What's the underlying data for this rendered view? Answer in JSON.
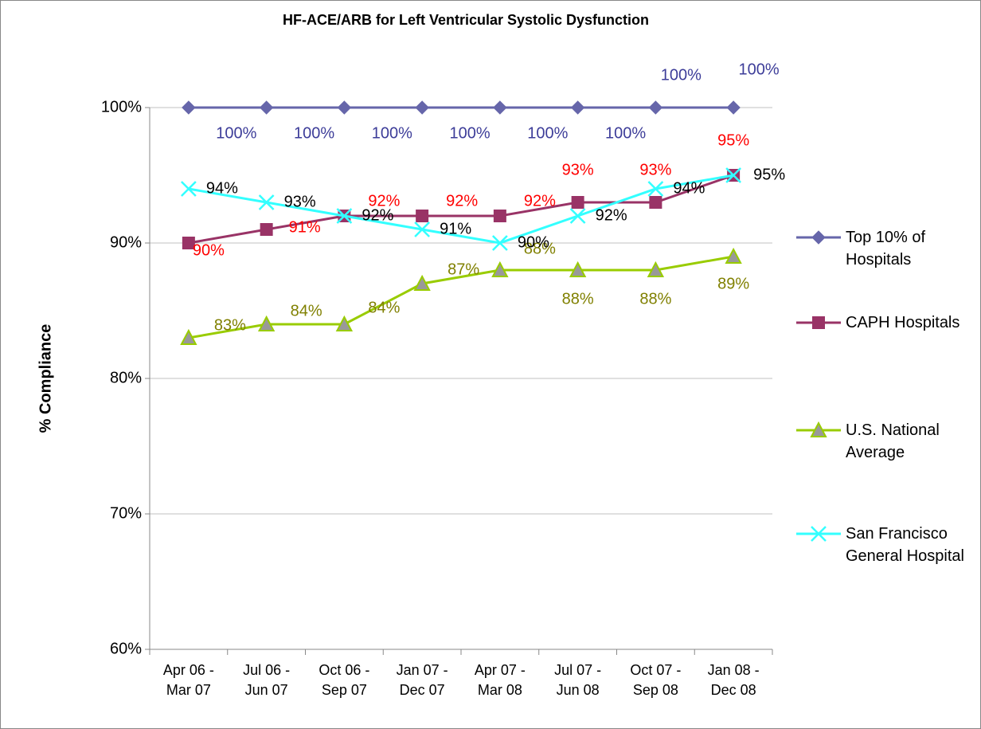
{
  "chart_data": {
    "type": "line",
    "title": "HF-ACE/ARB for Left Ventricular Systolic Dysfunction",
    "y_label": "% Compliance",
    "categories": [
      "Apr 06 - Mar 07",
      "Jul 06 - Jun 07",
      "Oct 06 - Sep 07",
      "Jan 07 - Dec 07",
      "Apr 07 - Mar 08",
      "Jul 07 - Jun 08",
      "Oct 07 - Sep 08",
      "Jan 08 - Dec 08"
    ],
    "ylim": [
      60,
      100
    ],
    "yticks": [
      {
        "value": 60,
        "label": "60%"
      },
      {
        "value": 70,
        "label": "70%"
      },
      {
        "value": 80,
        "label": "80%"
      },
      {
        "value": 90,
        "label": "90%"
      },
      {
        "value": 100,
        "label": "100%"
      }
    ],
    "grid": true,
    "legend": "right",
    "series": [
      {
        "name": "Top 10% of Hospitals",
        "color": "#6666aa",
        "label_color": "#3d3d99",
        "marker": "diamond",
        "values": [
          100,
          100,
          100,
          100,
          100,
          100,
          100,
          100
        ],
        "value_labels": [
          "100%",
          "100%",
          "100%",
          "100%",
          "100%",
          "100%",
          "100%",
          "100%"
        ]
      },
      {
        "name": "CAPH Hospitals",
        "color": "#993366",
        "label_color": "#ff0000",
        "marker": "square",
        "values": [
          90,
          91,
          92,
          92,
          92,
          93,
          93,
          95
        ],
        "value_labels": [
          "90%",
          "91%",
          "92%",
          "92%",
          "92%",
          "93%",
          "93%",
          "95%"
        ]
      },
      {
        "name": "U.S. National Average",
        "color": "#99cc00",
        "label_color": "#808000",
        "marker": "triangle",
        "values": [
          83,
          84,
          84,
          87,
          88,
          88,
          88,
          89
        ],
        "value_labels": [
          "83%",
          "84%",
          "84%",
          "87%",
          "88%",
          "88%",
          "88%",
          "89%"
        ]
      },
      {
        "name": "San Francisco General Hospital",
        "color": "#33ffff",
        "label_color": "#000000",
        "marker": "x",
        "values": [
          94,
          93,
          92,
          91,
          90,
          92,
          94,
          95
        ],
        "value_labels": [
          "94%",
          "93%",
          "92%",
          "91%",
          "90%",
          "92%",
          "94%",
          "95%"
        ]
      }
    ]
  }
}
